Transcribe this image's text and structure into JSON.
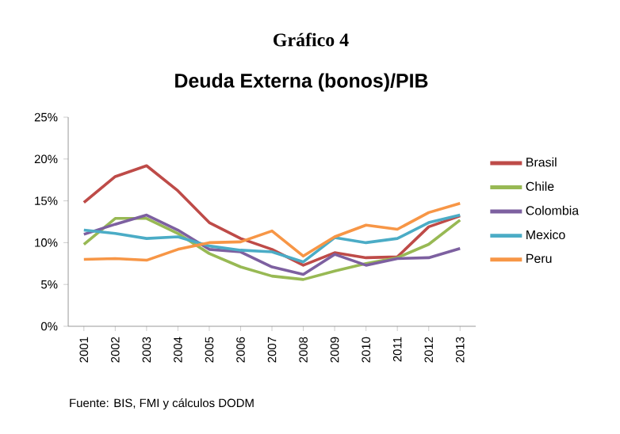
{
  "chart_data": {
    "type": "line",
    "title": "Gráfico 4",
    "subtitle": "Deuda Externa (bonos)/PIB",
    "annotations": [
      "Fuente: BIS, FMI y cálculos DODM"
    ],
    "categories": [
      "2001",
      "2002",
      "2003",
      "2004",
      "2005",
      "2006",
      "2007",
      "2008",
      "2009",
      "2010",
      "2011",
      "2012",
      "2013"
    ],
    "series": [
      {
        "name": "Brasil",
        "color": "#be4b48",
        "values": [
          14.8,
          17.9,
          19.2,
          16.2,
          12.4,
          10.5,
          9.2,
          7.3,
          8.8,
          8.2,
          8.3,
          11.9,
          13.2
        ]
      },
      {
        "name": "Chile",
        "color": "#98b954",
        "values": [
          9.8,
          12.9,
          12.9,
          11.1,
          8.7,
          7.1,
          6.0,
          5.6,
          6.6,
          7.5,
          8.2,
          9.8,
          12.7
        ]
      },
      {
        "name": "Colombia",
        "color": "#7d60a0",
        "values": [
          11.0,
          12.2,
          13.3,
          11.5,
          9.2,
          8.9,
          7.1,
          6.2,
          8.6,
          7.3,
          8.1,
          8.2,
          9.3
        ]
      },
      {
        "name": "Mexico",
        "color": "#4bacc6",
        "values": [
          11.5,
          11.1,
          10.5,
          10.7,
          9.6,
          9.1,
          8.9,
          7.7,
          10.6,
          10.0,
          10.5,
          12.4,
          13.3
        ]
      },
      {
        "name": "Peru",
        "color": "#f79646",
        "values": [
          8.0,
          8.1,
          7.9,
          9.2,
          10.0,
          10.1,
          11.4,
          8.4,
          10.7,
          12.1,
          11.6,
          13.6,
          14.7
        ]
      }
    ],
    "ylim": [
      0,
      25
    ],
    "yticks": [
      {
        "value": 0,
        "label": "0%"
      },
      {
        "value": 5,
        "label": "5%"
      },
      {
        "value": 10,
        "label": "10%"
      },
      {
        "value": 15,
        "label": "15%"
      },
      {
        "value": 20,
        "label": "20%"
      },
      {
        "value": 25,
        "label": "25%"
      }
    ],
    "grid": false,
    "legend": "right",
    "marker": "none",
    "line_style": "solid"
  }
}
